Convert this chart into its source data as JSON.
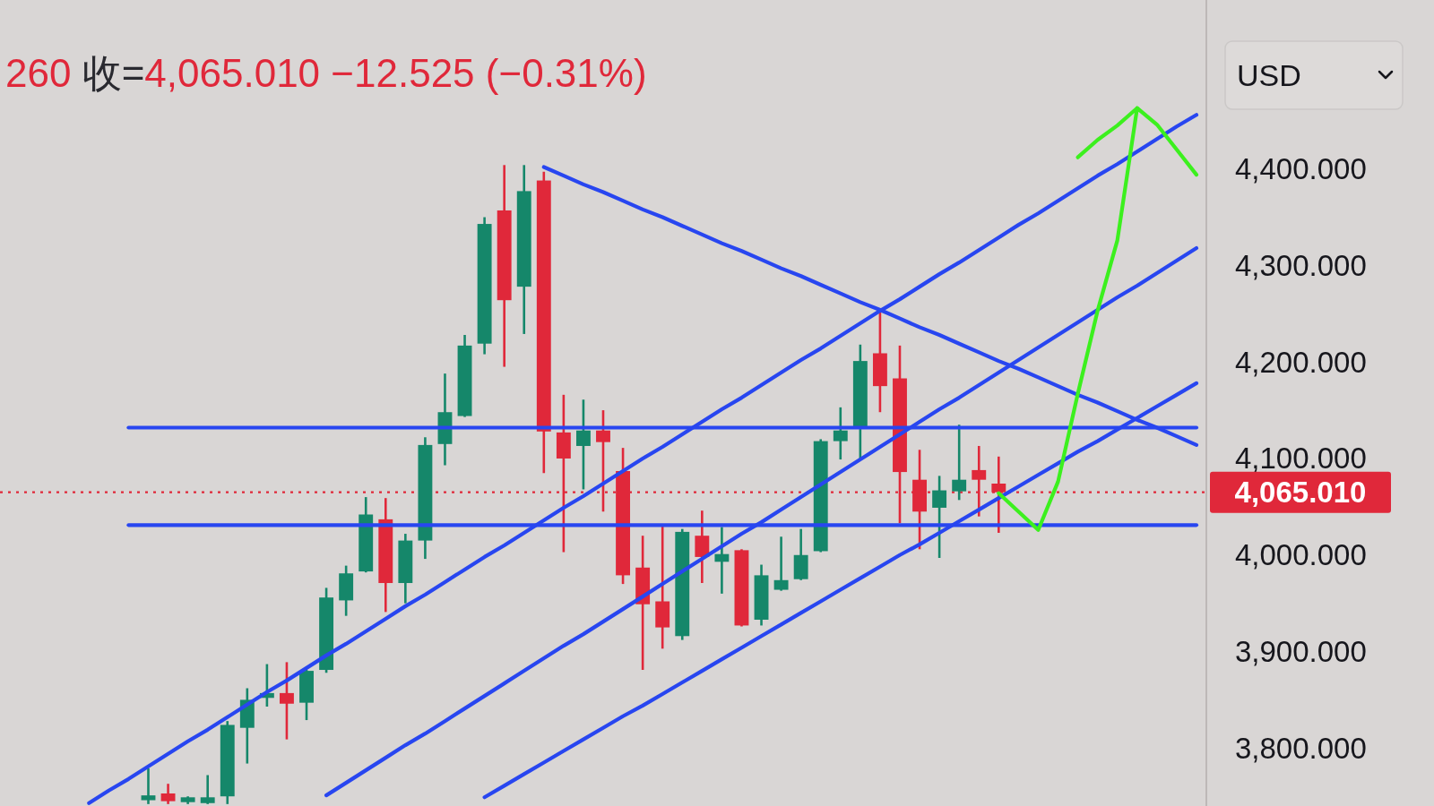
{
  "chart_data": {
    "type": "candlestick",
    "title": "260 收=4,065.010 −12.525 (−0.31%)",
    "ylabel": "USD",
    "tick_labels": "y",
    "categories": [
      null,
      null,
      null,
      null,
      null,
      null,
      null,
      null,
      null,
      null,
      null,
      null,
      null,
      null,
      null,
      null,
      null,
      null,
      null,
      null,
      null,
      null,
      null,
      null,
      null,
      null,
      null,
      null,
      null,
      null,
      null,
      null,
      null,
      null,
      null,
      null,
      null,
      null,
      null,
      null,
      null,
      null,
      null,
      null,
      null,
      null,
      null,
      null,
      null,
      null,
      null,
      null,
      null,
      null,
      null,
      null,
      null,
      null,
      null,
      null,
      null
    ],
    "ohlc": [
      null,
      null,
      null,
      null,
      null,
      null,
      null,
      [
        3746,
        3779,
        3742,
        3751
      ],
      [
        3753,
        3763,
        3742,
        3745
      ],
      [
        3744,
        3750,
        3742,
        3749
      ],
      [
        3743,
        3772,
        3742,
        3749
      ],
      [
        3750,
        3828,
        3742,
        3824
      ],
      [
        3821,
        3862,
        3784,
        3850
      ],
      [
        3852,
        3887,
        3843,
        3857
      ],
      [
        3857,
        3889,
        3809,
        3846
      ],
      [
        3847,
        3881,
        3829,
        3880
      ],
      [
        3881,
        3966,
        3878,
        3956
      ],
      [
        3953,
        3989,
        3937,
        3981
      ],
      [
        3983,
        4060,
        3982,
        4042
      ],
      [
        4037,
        4059,
        3941,
        3971
      ],
      [
        3971,
        4022,
        3950,
        4015
      ],
      [
        4015,
        4122,
        3996,
        4114
      ],
      [
        4115,
        4188,
        4093,
        4148
      ],
      [
        4144,
        4228,
        4143,
        4217
      ],
      [
        4219,
        4350,
        4208,
        4343
      ],
      [
        4357,
        4404,
        4195,
        4264
      ],
      [
        4278,
        4404,
        4229,
        4377
      ],
      [
        4388,
        4397,
        4085,
        4128
      ],
      [
        4127,
        4166,
        4003,
        4100
      ],
      [
        4113,
        4161,
        4068,
        4129
      ],
      [
        4129,
        4150,
        4045,
        4117
      ],
      [
        4087,
        4111,
        3970,
        3979
      ],
      [
        3987,
        4020,
        3881,
        3949
      ],
      [
        3952,
        4030,
        3903,
        3925
      ],
      [
        3916,
        4027,
        3912,
        4024
      ],
      [
        4020,
        4046,
        3971,
        3998
      ],
      [
        3993,
        4029,
        3960,
        4001
      ],
      [
        4005,
        4006,
        3926,
        3927
      ],
      [
        3933,
        3990,
        3927,
        3979
      ],
      [
        3964,
        4019,
        3963,
        3974
      ],
      [
        3975,
        4027,
        3974,
        4000
      ],
      [
        4004,
        4120,
        4003,
        4118
      ],
      [
        4118,
        4153,
        4099,
        4129
      ],
      [
        4131,
        4218,
        4100,
        4201
      ],
      [
        4209,
        4253,
        4148,
        4175
      ],
      [
        4183,
        4217,
        4033,
        4086
      ],
      [
        4078,
        4109,
        4006,
        4045
      ],
      [
        4049,
        4082,
        3997,
        4067
      ],
      [
        4066,
        4135,
        4057,
        4078
      ],
      [
        4088,
        4113,
        4040,
        4078
      ],
      [
        4074,
        4102,
        4023,
        4065.01
      ],
      null,
      null,
      null,
      null,
      null,
      null,
      null,
      null,
      null,
      null
    ],
    "colors": [
      null,
      null,
      null,
      null,
      null,
      null,
      null,
      "#15876a",
      "#e0283a",
      "#15876a",
      "#15876a",
      "#15876a",
      "#15876a",
      "#15876a",
      "#e0283a",
      "#15876a",
      "#15876a",
      "#15876a",
      "#15876a",
      "#e0283a",
      "#15876a",
      "#15876a",
      "#15876a",
      "#15876a",
      "#15876a",
      "#e0283a",
      "#15876a",
      "#e0283a",
      "#e0283a",
      "#15876a",
      "#e0283a",
      "#e0283a",
      "#e0283a",
      "#e0283a",
      "#15876a",
      "#e0283a",
      "#15876a",
      "#e0283a",
      "#15876a",
      "#15876a",
      "#15876a",
      "#15876a",
      "#15876a",
      "#15876a",
      "#e0283a",
      "#e0283a",
      "#e0283a",
      "#15876a",
      "#15876a",
      "#e0283a",
      "#e0283a",
      null,
      null,
      null,
      null,
      null,
      null,
      null,
      null,
      null,
      null
    ],
    "series": [
      {
        "type": "line",
        "color": "#2846f0",
        "values": [
          null,
          null,
          null,
          null,
          3743,
          3756,
          3768,
          3781,
          3794,
          3807,
          3819,
          3832,
          3845,
          3858,
          3870,
          3883,
          3896,
          3908,
          3921,
          3934,
          3947,
          3959,
          3972,
          3985,
          3998,
          4010,
          4023,
          4036,
          4049,
          4061,
          4074,
          4087,
          4100,
          4112,
          4125,
          4138,
          4151,
          4163,
          4176,
          4189,
          4202,
          4214,
          4227,
          4240,
          4253,
          4265,
          4278,
          4291,
          4303,
          4316,
          4329,
          4342,
          4354,
          4367,
          4380,
          4393,
          4405,
          4418,
          4431,
          4444,
          4456
        ]
      },
      {
        "type": "line",
        "color": "#2846f0",
        "values": [
          null,
          null,
          null,
          null,
          null,
          null,
          null,
          null,
          null,
          null,
          null,
          null,
          null,
          null,
          null,
          null,
          3751,
          3764,
          3777,
          3790,
          3803,
          3815,
          3828,
          3841,
          3854,
          3867,
          3880,
          3893,
          3906,
          3918,
          3931,
          3944,
          3957,
          3970,
          3983,
          3996,
          4009,
          4022,
          4034,
          4047,
          4060,
          4073,
          4086,
          4099,
          4112,
          4125,
          4138,
          4151,
          4163,
          4176,
          4189,
          4202,
          4215,
          4228,
          4241,
          4254,
          4267,
          4279,
          4292,
          4305,
          4318
        ]
      },
      {
        "type": "line",
        "color": "#2846f0",
        "values": [
          null,
          null,
          null,
          null,
          null,
          null,
          null,
          null,
          null,
          null,
          null,
          null,
          null,
          null,
          null,
          null,
          null,
          null,
          null,
          null,
          null,
          null,
          null,
          null,
          3749,
          3761,
          3773,
          3785,
          3797,
          3809,
          3821,
          3833,
          3844,
          3856,
          3868,
          3880,
          3892,
          3904,
          3916,
          3928,
          3940,
          3952,
          3964,
          3976,
          3988,
          4000,
          4011,
          4023,
          4035,
          4047,
          4059,
          4071,
          4083,
          4095,
          4107,
          4118,
          4130,
          4142,
          4154,
          4166,
          4178
        ]
      },
      {
        "type": "line",
        "color": "#2846f0",
        "values": [
          null,
          null,
          null,
          null,
          null,
          null,
          null,
          null,
          null,
          null,
          null,
          null,
          null,
          null,
          null,
          null,
          null,
          null,
          null,
          null,
          null,
          null,
          null,
          null,
          null,
          null,
          null,
          4402,
          4393,
          4384,
          4376,
          4367,
          4358,
          4350,
          4341,
          4332,
          4323,
          4315,
          4306,
          4297,
          4289,
          4280,
          4271,
          4262,
          4254,
          4245,
          4236,
          4228,
          4219,
          4210,
          4201,
          4193,
          4184,
          4175,
          4166,
          4158,
          4149,
          4140,
          4132,
          4123,
          4114
        ]
      },
      {
        "type": "line",
        "color": "#2846f0",
        "values": [
          null,
          null,
          null,
          null,
          null,
          null,
          4132,
          4132,
          4132,
          4132,
          4132,
          4132,
          4132,
          4132,
          4132,
          4132,
          4132,
          4132,
          4132,
          4132,
          4132,
          4132,
          4132,
          4132,
          4132,
          4132,
          4132,
          4132,
          4132,
          4132,
          4132,
          4132,
          4132,
          4132,
          4132,
          4132,
          4132,
          4132,
          4132,
          4132,
          4132,
          4132,
          4132,
          4132,
          4132,
          4132,
          4132,
          4132,
          4132,
          4132,
          4132,
          4132,
          4132,
          4132,
          4132,
          4132,
          4132,
          4132,
          4132,
          4132,
          4132
        ]
      },
      {
        "type": "line",
        "color": "#2846f0",
        "values": [
          null,
          null,
          null,
          null,
          null,
          null,
          4031,
          4031,
          4031,
          4031,
          4031,
          4031,
          4031,
          4031,
          4031,
          4031,
          4031,
          4031,
          4031,
          4031,
          4031,
          4031,
          4031,
          4031,
          4031,
          4031,
          4031,
          4031,
          4031,
          4031,
          4031,
          4031,
          4031,
          4031,
          4031,
          4031,
          4031,
          4031,
          4031,
          4031,
          4031,
          4031,
          4031,
          4031,
          4031,
          4031,
          4031,
          4031,
          4031,
          4031,
          4031,
          4031,
          4031,
          4031,
          4031,
          4031,
          4031,
          4031,
          4031,
          4031,
          4031
        ]
      },
      {
        "type": "line",
        "color": "#3cf01e",
        "values": [
          null,
          null,
          null,
          null,
          null,
          null,
          null,
          null,
          null,
          null,
          null,
          null,
          null,
          null,
          null,
          null,
          null,
          null,
          null,
          null,
          null,
          null,
          null,
          null,
          null,
          null,
          null,
          null,
          null,
          null,
          null,
          null,
          null,
          null,
          null,
          null,
          null,
          null,
          null,
          null,
          null,
          null,
          null,
          null,
          null,
          null,
          null,
          null,
          null,
          null,
          4064,
          4045,
          4026,
          4076,
          4167,
          4253,
          4326,
          4463,
          4446,
          4420,
          4394
        ]
      },
      {
        "type": "line",
        "color": "#3cf01e",
        "values": [
          null,
          null,
          null,
          null,
          null,
          null,
          null,
          null,
          null,
          null,
          null,
          null,
          null,
          null,
          null,
          null,
          null,
          null,
          null,
          null,
          null,
          null,
          null,
          null,
          null,
          null,
          null,
          null,
          null,
          null,
          null,
          null,
          null,
          null,
          null,
          null,
          null,
          null,
          null,
          null,
          null,
          null,
          null,
          null,
          null,
          null,
          null,
          null,
          null,
          null,
          null,
          null,
          null,
          null,
          4412,
          4430,
          4445,
          4463,
          null,
          null,
          null
        ]
      }
    ],
    "ylim": [
      3740,
      4575
    ],
    "yticks": [
      {
        "value": 3800,
        "label": "3,800.000"
      },
      {
        "value": 3900,
        "label": "3,900.000"
      },
      {
        "value": 4000,
        "label": "4,000.000"
      },
      {
        "value": 4100,
        "label": "4,100.000"
      },
      {
        "value": 4200,
        "label": "4,200.000"
      },
      {
        "value": 4300,
        "label": "4,300.000"
      },
      {
        "value": 4400,
        "label": "4,400.000"
      }
    ],
    "ref_lines": [
      {
        "axis": "y",
        "value": 4065.01,
        "label": "4,065.010",
        "color": "#e0283a",
        "line_style": "dotted"
      }
    ]
  }
}
